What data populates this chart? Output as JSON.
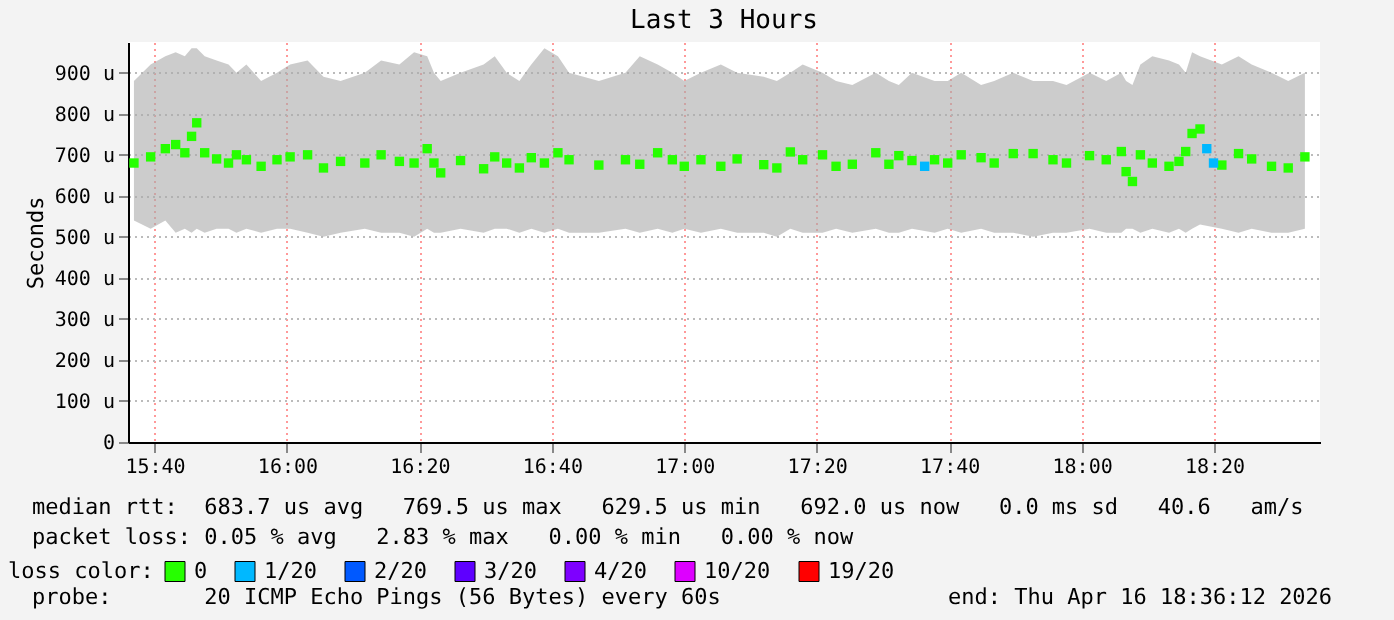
{
  "chart_data": {
    "type": "scatter",
    "title": "Last 3 Hours",
    "ylabel": "Seconds",
    "legend_title": "loss color:",
    "legend": "bottom",
    "marker": "square",
    "grid": true,
    "xlim": [
      15.6,
      18.6
    ],
    "xticks": [
      {
        "value": 15.6667,
        "label": "15:40"
      },
      {
        "value": 16,
        "label": "16:00"
      },
      {
        "value": 16.3333,
        "label": "16:20"
      },
      {
        "value": 16.6667,
        "label": "16:40"
      },
      {
        "value": 17,
        "label": "17:00"
      },
      {
        "value": 17.3333,
        "label": "17:20"
      },
      {
        "value": 17.6667,
        "label": "17:40"
      },
      {
        "value": 18,
        "label": "18:00"
      },
      {
        "value": 18.3333,
        "label": "18:20"
      }
    ],
    "ylim": [
      0,
      975
    ],
    "yticks": [
      0,
      {
        "value": 100,
        "label": "100 u"
      },
      {
        "value": 200,
        "label": "200 u"
      },
      {
        "value": 300,
        "label": "300 u"
      },
      {
        "value": 400,
        "label": "400 u"
      },
      {
        "value": 500,
        "label": "500 u"
      },
      {
        "value": 600,
        "label": "600 u"
      },
      {
        "value": 700,
        "label": "700 u"
      },
      {
        "value": 800,
        "label": "800 u"
      },
      {
        "value": 900,
        "label": "900 u"
      }
    ],
    "series": [
      {
        "name": "0",
        "color": "#26ff00",
        "x": [
          15.615,
          15.657,
          15.694,
          15.72,
          15.743,
          15.76,
          15.773,
          15.793,
          15.823,
          15.853,
          15.873,
          15.898,
          15.935,
          15.975,
          16.008,
          16.052,
          16.092,
          16.135,
          16.196,
          16.237,
          16.283,
          16.32,
          16.353,
          16.37,
          16.387,
          16.437,
          16.495,
          16.523,
          16.553,
          16.585,
          16.615,
          16.648,
          16.682,
          16.71,
          16.785,
          16.852,
          16.888,
          16.933,
          16.97,
          17.0,
          17.042,
          17.092,
          17.133,
          17.2,
          17.233,
          17.267,
          17.298,
          17.348,
          17.382,
          17.423,
          17.482,
          17.515,
          17.54,
          17.573,
          17.63,
          17.663,
          17.697,
          17.747,
          17.78,
          17.828,
          17.878,
          17.928,
          17.962,
          18.02,
          18.062,
          18.1,
          18.112,
          18.128,
          18.148,
          18.178,
          18.22,
          18.245,
          18.262,
          18.278,
          18.298,
          18.353,
          18.395,
          18.428,
          18.478,
          18.52,
          18.562
        ],
        "values": [
          680,
          695,
          715,
          725,
          705,
          745,
          778,
          705,
          690,
          680,
          700,
          688,
          672,
          688,
          695,
          700,
          668,
          684,
          680,
          700,
          684,
          680,
          715,
          680,
          656,
          686,
          666,
          695,
          680,
          668,
          693,
          680,
          705,
          688,
          675,
          688,
          677,
          705,
          688,
          672,
          688,
          672,
          690,
          676,
          668,
          707,
          688,
          700,
          672,
          677,
          705,
          677,
          698,
          686,
          688,
          680,
          700,
          693,
          680,
          703,
          703,
          688,
          680,
          698,
          688,
          708,
          659,
          635,
          700,
          680,
          672,
          684,
          708,
          752,
          763,
          675,
          703,
          690,
          672,
          668,
          695
        ],
        "lower": [
          540,
          520,
          540,
          510,
          520,
          510,
          520,
          510,
          520,
          520,
          510,
          520,
          510,
          520,
          520,
          510,
          500,
          510,
          520,
          510,
          510,
          500,
          520,
          510,
          510,
          520,
          510,
          520,
          520,
          510,
          520,
          510,
          520,
          510,
          510,
          520,
          510,
          520,
          510,
          520,
          510,
          520,
          510,
          510,
          500,
          520,
          510,
          510,
          520,
          510,
          520,
          510,
          510,
          520,
          510,
          520,
          510,
          520,
          510,
          510,
          500,
          510,
          510,
          520,
          510,
          510,
          520,
          520,
          510,
          520,
          510,
          520,
          510,
          520,
          530,
          520,
          510,
          520,
          510,
          510,
          520
        ],
        "upper": [
          880,
          920,
          940,
          950,
          940,
          960,
          960,
          940,
          930,
          920,
          900,
          920,
          880,
          900,
          920,
          930,
          890,
          880,
          900,
          930,
          920,
          950,
          940,
          900,
          880,
          900,
          920,
          940,
          900,
          880,
          920,
          960,
          940,
          900,
          880,
          900,
          940,
          920,
          900,
          880,
          900,
          920,
          900,
          890,
          880,
          900,
          920,
          900,
          880,
          870,
          900,
          880,
          870,
          900,
          880,
          880,
          900,
          870,
          880,
          900,
          880,
          880,
          870,
          900,
          880,
          900,
          880,
          870,
          920,
          940,
          930,
          920,
          900,
          950,
          940,
          920,
          940,
          920,
          900,
          880,
          900
        ]
      },
      {
        "name": "1/20",
        "color": "#00b8ff",
        "x": [
          17.605,
          18.315,
          18.332
        ],
        "values": [
          672,
          715,
          680
        ]
      },
      {
        "name": "2/20",
        "color": "#0059ff"
      },
      {
        "name": "3/20",
        "color": "#5e00ff"
      },
      {
        "name": "4/20",
        "color": "#7e00ff"
      },
      {
        "name": "10/20",
        "color": "#dd00ff"
      },
      {
        "name": "19/20",
        "color": "#ff0000"
      }
    ],
    "annotations": [
      "median rtt:  683.7 us avg   769.5 us max   629.5 us min   692.0 us now   0.0 ms sd   40.6   am/s",
      "packet loss: 0.05 % avg   2.83 % max   0.00 % min   0.00 % now",
      "probe:       20 ICMP Echo Pings (56 Bytes) every 60s",
      "end: Thu Apr 16 18:36:12 2026"
    ]
  }
}
